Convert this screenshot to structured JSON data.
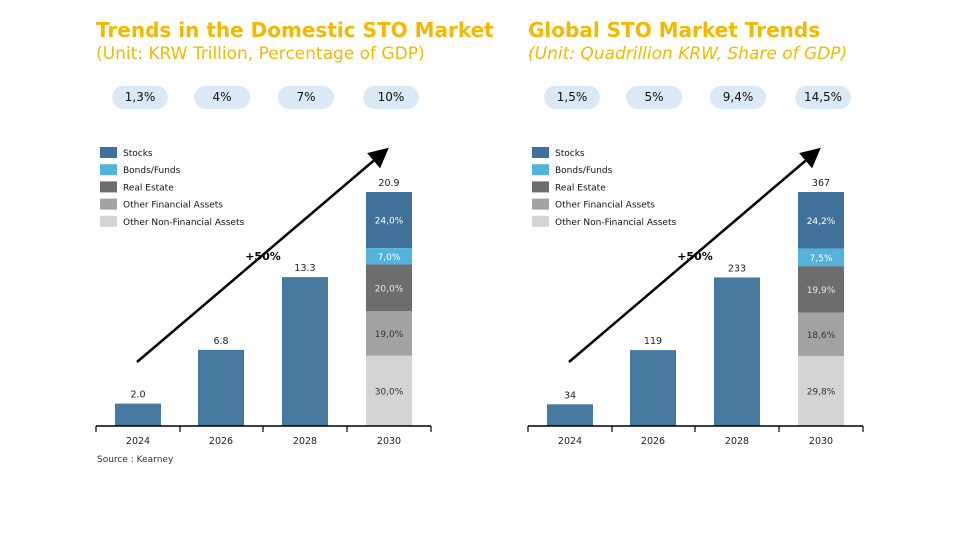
{
  "chart_data": [
    {
      "type": "bar",
      "title": "Trends in the Domestic STO Market",
      "subtitle": "(Unit: KRW Trillion, Percentage of GDP)",
      "categories": [
        "2024",
        "2026",
        "2028",
        "2030"
      ],
      "values": [
        2.0,
        6.8,
        13.3,
        20.9
      ],
      "value_labels": [
        "2.0",
        "6.8",
        "13.3",
        "20.9"
      ],
      "gdp_share": [
        "1,3%",
        "4%",
        "7%",
        "10%"
      ],
      "legend": [
        "Stocks",
        "Bonds/Funds",
        "Real Estate",
        "Other Financial Assets",
        "Other Non-Financial Assets"
      ],
      "legend_colors": [
        "#3f719a",
        "#55b2dc",
        "#6d6d6d",
        "#a3a3a3",
        "#d4d4d4"
      ],
      "stack_2030": [
        {
          "name": "Stocks",
          "share": 24.0,
          "label": "24,0%"
        },
        {
          "name": "Bonds/Funds",
          "share": 7.0,
          "label": "7,0%"
        },
        {
          "name": "Real Estate",
          "share": 20.0,
          "label": "20,0%"
        },
        {
          "name": "Other Financial Assets",
          "share": 19.0,
          "label": "19,0%"
        },
        {
          "name": "Other Non-Financial Assets",
          "share": 30.0,
          "label": "30,0%"
        }
      ],
      "growth_label": "+50%",
      "source": "Source : Kearney"
    },
    {
      "type": "bar",
      "title": "Global STO Market Trends",
      "subtitle": "(Unit: Quadrillion KRW, Share of GDP)",
      "categories": [
        "2024",
        "2026",
        "2028",
        "2030"
      ],
      "values": [
        34,
        119,
        233,
        367
      ],
      "value_labels": [
        "34",
        "119",
        "233",
        "367"
      ],
      "gdp_share": [
        "1,5%",
        "5%",
        "9,4%",
        "14,5%"
      ],
      "legend": [
        "Stocks",
        "Bonds/Funds",
        "Real Estate",
        "Other Financial Assets",
        "Other Non-Financial Assets"
      ],
      "legend_colors": [
        "#3f719a",
        "#55b2dc",
        "#6d6d6d",
        "#a3a3a3",
        "#d4d4d4"
      ],
      "stack_2030": [
        {
          "name": "Stocks",
          "share": 24.2,
          "label": "24,2%"
        },
        {
          "name": "Bonds/Funds",
          "share": 7.5,
          "label": "7,5%"
        },
        {
          "name": "Real Estate",
          "share": 19.9,
          "label": "19,9%"
        },
        {
          "name": "Other Financial Assets",
          "share": 18.6,
          "label": "18,6%"
        },
        {
          "name": "Other Non-Financial Assets",
          "share": 29.8,
          "label": "29,8%"
        }
      ],
      "growth_label": "+50%",
      "source": ""
    }
  ]
}
